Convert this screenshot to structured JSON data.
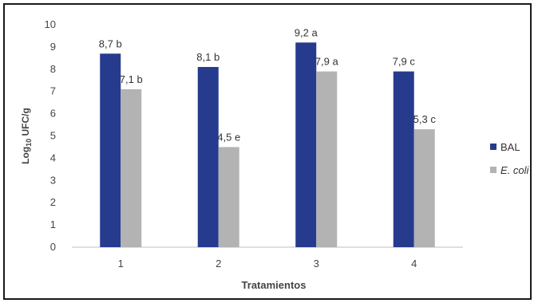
{
  "chart_data": {
    "type": "bar",
    "categories": [
      "1",
      "2",
      "3",
      "4"
    ],
    "series": [
      {
        "name": "BAL",
        "color": "#263b8e",
        "values": [
          8.7,
          8.1,
          9.2,
          7.9
        ],
        "labels": [
          "8,7 b",
          "8,1 b",
          "9,2 a",
          "7,9 c"
        ]
      },
      {
        "name": "E. coli",
        "color": "#b3b3b3",
        "values": [
          7.1,
          4.5,
          7.9,
          5.3
        ],
        "labels": [
          "7,1 b",
          "4,5 e",
          "7,9 a",
          "5,3 c"
        ]
      }
    ],
    "xlabel": "Tratamientos",
    "ylabel": "Log10 UFC/g",
    "ylim": [
      0,
      10
    ],
    "yticks": [
      "0",
      "1",
      "2",
      "3",
      "4",
      "5",
      "6",
      "7",
      "8",
      "9",
      "10"
    ],
    "grid": false,
    "legend": "right"
  }
}
